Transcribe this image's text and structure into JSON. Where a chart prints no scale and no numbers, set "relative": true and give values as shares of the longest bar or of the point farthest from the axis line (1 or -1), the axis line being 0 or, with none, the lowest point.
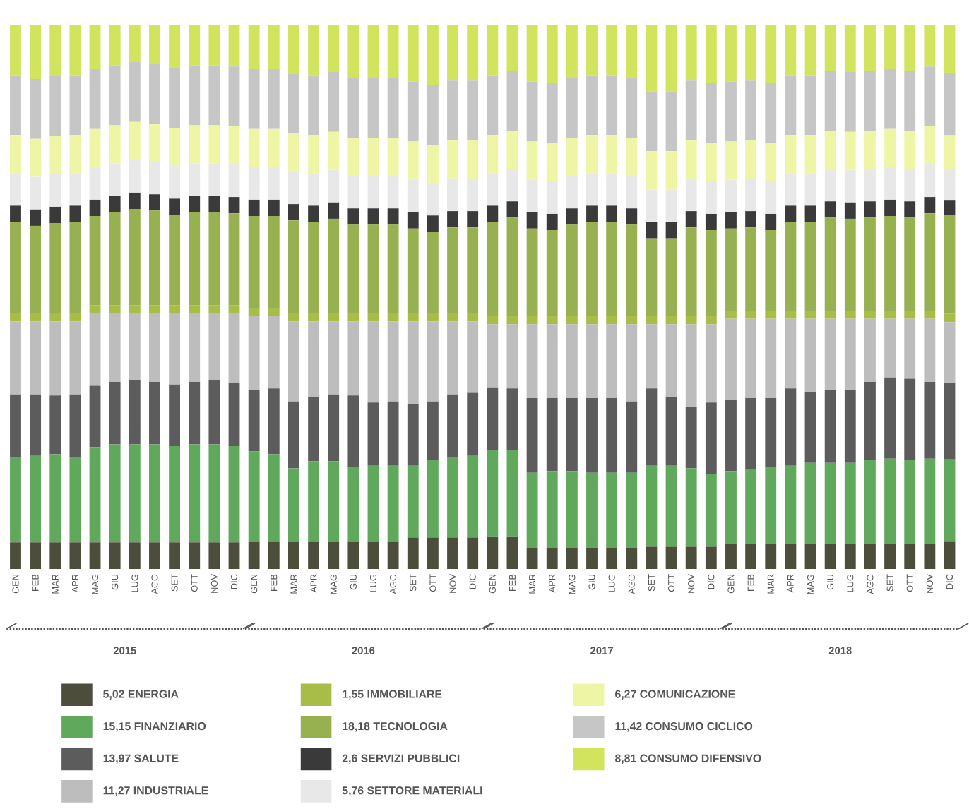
{
  "chart_data": {
    "type": "bar",
    "stacked": true,
    "relative": true,
    "legend": "bottom",
    "categories": [
      "GEN",
      "FEB",
      "MAR",
      "APR",
      "MAG",
      "GIU",
      "LUG",
      "AGO",
      "SET",
      "OTT",
      "NOV",
      "DIC",
      "GEN",
      "FEB",
      "MAR",
      "APR",
      "MAG",
      "GIU",
      "LUG",
      "AGO",
      "SET",
      "OTT",
      "NOV",
      "DIC",
      "GEN",
      "FEB",
      "MAR",
      "APR",
      "MAG",
      "GIU",
      "LUG",
      "AGO",
      "SET",
      "OTT",
      "NOV",
      "DIC",
      "GEN",
      "FEB",
      "MAR",
      "APR",
      "MAG",
      "GIU",
      "LUG",
      "AGO",
      "SET",
      "OTT",
      "NOV",
      "DIC"
    ],
    "series": [
      {
        "name": "5,02 ENERGIA",
        "color": "#4d4d3c",
        "values": [
          0.049,
          0.049,
          0.049,
          0.049,
          0.049,
          0.049,
          0.049,
          0.049,
          0.049,
          0.049,
          0.049,
          0.049,
          0.05,
          0.05,
          0.05,
          0.05,
          0.05,
          0.05,
          0.05,
          0.05,
          0.058,
          0.058,
          0.058,
          0.058,
          0.06,
          0.06,
          0.039,
          0.039,
          0.039,
          0.039,
          0.039,
          0.039,
          0.041,
          0.041,
          0.041,
          0.041,
          0.046,
          0.046,
          0.046,
          0.046,
          0.046,
          0.046,
          0.046,
          0.046,
          0.046,
          0.046,
          0.046,
          0.0502
        ]
      },
      {
        "name": "15,15 FINANZIARIO",
        "color": "#5fa85c",
        "values": [
          0.157,
          0.159,
          0.162,
          0.157,
          0.175,
          0.18,
          0.18,
          0.18,
          0.177,
          0.18,
          0.18,
          0.177,
          0.166,
          0.161,
          0.135,
          0.148,
          0.148,
          0.138,
          0.14,
          0.14,
          0.132,
          0.143,
          0.148,
          0.15,
          0.159,
          0.159,
          0.138,
          0.141,
          0.141,
          0.138,
          0.138,
          0.138,
          0.149,
          0.149,
          0.144,
          0.134,
          0.134,
          0.137,
          0.142,
          0.144,
          0.149,
          0.149,
          0.149,
          0.155,
          0.157,
          0.155,
          0.157,
          0.1515
        ]
      },
      {
        "name": "13,97 SALUTE",
        "color": "#5c5c5c",
        "values": [
          0.115,
          0.113,
          0.108,
          0.115,
          0.113,
          0.115,
          0.118,
          0.115,
          0.113,
          0.115,
          0.118,
          0.116,
          0.113,
          0.121,
          0.123,
          0.118,
          0.123,
          0.131,
          0.116,
          0.118,
          0.113,
          0.107,
          0.115,
          0.116,
          0.115,
          0.113,
          0.137,
          0.134,
          0.134,
          0.137,
          0.137,
          0.131,
          0.142,
          0.126,
          0.113,
          0.131,
          0.131,
          0.131,
          0.126,
          0.142,
          0.131,
          0.134,
          0.134,
          0.143,
          0.149,
          0.149,
          0.141,
          0.1397
        ]
      },
      {
        "name": "11,27 INDUSTRIALE",
        "color": "#bdbdbd",
        "values": [
          0.134,
          0.134,
          0.136,
          0.134,
          0.133,
          0.126,
          0.123,
          0.126,
          0.131,
          0.126,
          0.123,
          0.128,
          0.136,
          0.133,
          0.147,
          0.139,
          0.134,
          0.136,
          0.149,
          0.147,
          0.152,
          0.147,
          0.134,
          0.131,
          0.116,
          0.118,
          0.136,
          0.136,
          0.136,
          0.136,
          0.136,
          0.142,
          0.118,
          0.134,
          0.152,
          0.144,
          0.149,
          0.146,
          0.146,
          0.128,
          0.134,
          0.131,
          0.131,
          0.116,
          0.108,
          0.11,
          0.116,
          0.1127
        ]
      },
      {
        "name": "1,55 IMMOBILIARE",
        "color": "#a8bc48",
        "values": [
          0.015,
          0.015,
          0.015,
          0.015,
          0.015,
          0.015,
          0.015,
          0.015,
          0.015,
          0.015,
          0.015,
          0.015,
          0.015,
          0.015,
          0.015,
          0.015,
          0.015,
          0.015,
          0.015,
          0.015,
          0.015,
          0.015,
          0.015,
          0.015,
          0.015,
          0.015,
          0.015,
          0.015,
          0.015,
          0.015,
          0.015,
          0.015,
          0.015,
          0.015,
          0.015,
          0.015,
          0.015,
          0.015,
          0.015,
          0.015,
          0.015,
          0.015,
          0.015,
          0.015,
          0.015,
          0.015,
          0.015,
          0.0155
        ]
      },
      {
        "name": "18,18 TECNOLOGIA",
        "color": "#98b150",
        "values": [
          0.168,
          0.161,
          0.166,
          0.168,
          0.164,
          0.171,
          0.177,
          0.174,
          0.166,
          0.171,
          0.171,
          0.169,
          0.169,
          0.169,
          0.171,
          0.168,
          0.174,
          0.163,
          0.163,
          0.163,
          0.156,
          0.15,
          0.158,
          0.158,
          0.173,
          0.181,
          0.161,
          0.158,
          0.168,
          0.173,
          0.173,
          0.168,
          0.143,
          0.143,
          0.163,
          0.158,
          0.151,
          0.153,
          0.148,
          0.163,
          0.163,
          0.171,
          0.169,
          0.171,
          0.174,
          0.171,
          0.179,
          0.1818
        ]
      },
      {
        "name": "2,6 SERVIZI PUBBLICI",
        "color": "#3a3a3a",
        "values": [
          0.03,
          0.03,
          0.03,
          0.03,
          0.03,
          0.03,
          0.03,
          0.03,
          0.03,
          0.03,
          0.03,
          0.03,
          0.03,
          0.03,
          0.03,
          0.03,
          0.03,
          0.03,
          0.03,
          0.03,
          0.03,
          0.03,
          0.03,
          0.03,
          0.03,
          0.03,
          0.03,
          0.03,
          0.03,
          0.03,
          0.03,
          0.03,
          0.03,
          0.03,
          0.03,
          0.03,
          0.03,
          0.03,
          0.03,
          0.03,
          0.03,
          0.03,
          0.03,
          0.03,
          0.03,
          0.03,
          0.03,
          0.026
        ]
      },
      {
        "name": "5,76 SETTORE MATERIALI",
        "color": "#e8e8e8",
        "values": [
          0.06,
          0.06,
          0.06,
          0.06,
          0.06,
          0.06,
          0.06,
          0.06,
          0.06,
          0.06,
          0.06,
          0.06,
          0.06,
          0.06,
          0.06,
          0.06,
          0.06,
          0.06,
          0.06,
          0.06,
          0.06,
          0.06,
          0.06,
          0.06,
          0.06,
          0.06,
          0.06,
          0.06,
          0.06,
          0.06,
          0.06,
          0.06,
          0.06,
          0.06,
          0.06,
          0.06,
          0.06,
          0.06,
          0.06,
          0.06,
          0.06,
          0.06,
          0.06,
          0.06,
          0.06,
          0.06,
          0.06,
          0.0576
        ]
      },
      {
        "name": "6,27 COMUNICAZIONE",
        "color": "#eef6a6",
        "values": [
          0.07,
          0.07,
          0.07,
          0.07,
          0.07,
          0.07,
          0.07,
          0.07,
          0.07,
          0.07,
          0.07,
          0.07,
          0.07,
          0.07,
          0.07,
          0.07,
          0.07,
          0.07,
          0.07,
          0.07,
          0.07,
          0.07,
          0.07,
          0.07,
          0.07,
          0.07,
          0.07,
          0.07,
          0.07,
          0.07,
          0.07,
          0.07,
          0.07,
          0.07,
          0.07,
          0.07,
          0.07,
          0.07,
          0.07,
          0.07,
          0.07,
          0.07,
          0.07,
          0.07,
          0.07,
          0.07,
          0.07,
          0.0627
        ]
      },
      {
        "name": "11,42 CONSUMO CICLICO",
        "color": "#c6c6c6",
        "values": [
          0.11,
          0.11,
          0.11,
          0.11,
          0.11,
          0.11,
          0.11,
          0.11,
          0.11,
          0.11,
          0.11,
          0.11,
          0.11,
          0.11,
          0.11,
          0.11,
          0.11,
          0.11,
          0.11,
          0.11,
          0.11,
          0.11,
          0.11,
          0.11,
          0.11,
          0.11,
          0.11,
          0.11,
          0.11,
          0.11,
          0.11,
          0.11,
          0.11,
          0.11,
          0.11,
          0.11,
          0.11,
          0.11,
          0.11,
          0.11,
          0.11,
          0.11,
          0.11,
          0.11,
          0.11,
          0.11,
          0.11,
          0.1142
        ]
      },
      {
        "name": "8,81 CONSUMO DIFENSIVO",
        "color": "#d2e35e",
        "values": [
          0.092,
          0.099,
          0.094,
          0.092,
          0.081,
          0.074,
          0.068,
          0.071,
          0.079,
          0.074,
          0.074,
          0.076,
          0.081,
          0.081,
          0.089,
          0.092,
          0.086,
          0.097,
          0.097,
          0.097,
          0.104,
          0.11,
          0.102,
          0.102,
          0.092,
          0.084,
          0.104,
          0.107,
          0.097,
          0.092,
          0.092,
          0.097,
          0.122,
          0.122,
          0.102,
          0.107,
          0.104,
          0.102,
          0.107,
          0.092,
          0.092,
          0.084,
          0.086,
          0.084,
          0.081,
          0.084,
          0.076,
          0.0881
        ]
      }
    ],
    "annotations": [
      "2015",
      "2016",
      "2017",
      "2018"
    ]
  }
}
